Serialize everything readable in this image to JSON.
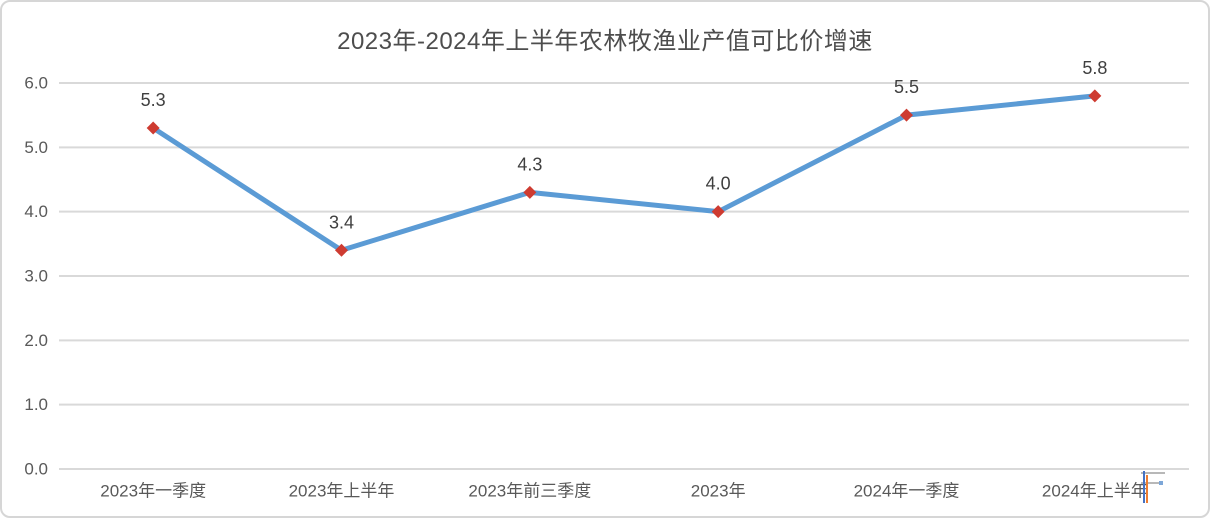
{
  "chart_data": {
    "type": "line",
    "title": "2023年-2024年上半年农林牧渔业产值可比价增速",
    "categories": [
      "2023年一季度",
      "2023年上半年",
      "2023年前三季度",
      "2023年",
      "2024年一季度",
      "2024年上半年"
    ],
    "series": [
      {
        "name": "农林牧渔业产值可比价增速",
        "values": [
          5.3,
          3.4,
          4.3,
          4.0,
          5.5,
          5.8
        ]
      }
    ],
    "point_labels": [
      "5.3",
      "3.4",
      "4.3",
      "4.0",
      "5.5",
      "5.8"
    ],
    "xlabel": "",
    "ylabel": "",
    "ylim": [
      0.0,
      6.0
    ],
    "ytick_labels": [
      "0.0",
      "1.0",
      "2.0",
      "3.0",
      "4.0",
      "5.0",
      "6.0"
    ],
    "grid": true,
    "legend": "none",
    "marker": "diamond",
    "colors": {
      "line": "#5B9BD5",
      "marker": "#CE3B31",
      "gridline": "#D9D9D9",
      "axis_text": "#595959",
      "point_label": "#3F3F3F",
      "title_text": "#4D4D4D",
      "panel_border": "#D6D6D6",
      "background": "#FFFFFF"
    }
  }
}
